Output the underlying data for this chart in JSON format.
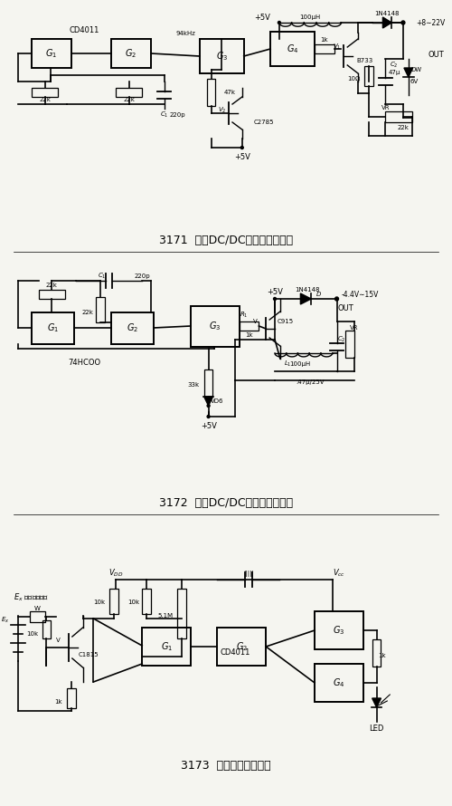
{
  "bg_color": "#f5f5f0",
  "title1": "3171  可调DC/DC小功率变换器一",
  "title2": "3172  可调DC/DC小功率变换器二",
  "title3": "3173  电池电压检测电路",
  "fig_width": 5.0,
  "fig_height": 8.9
}
